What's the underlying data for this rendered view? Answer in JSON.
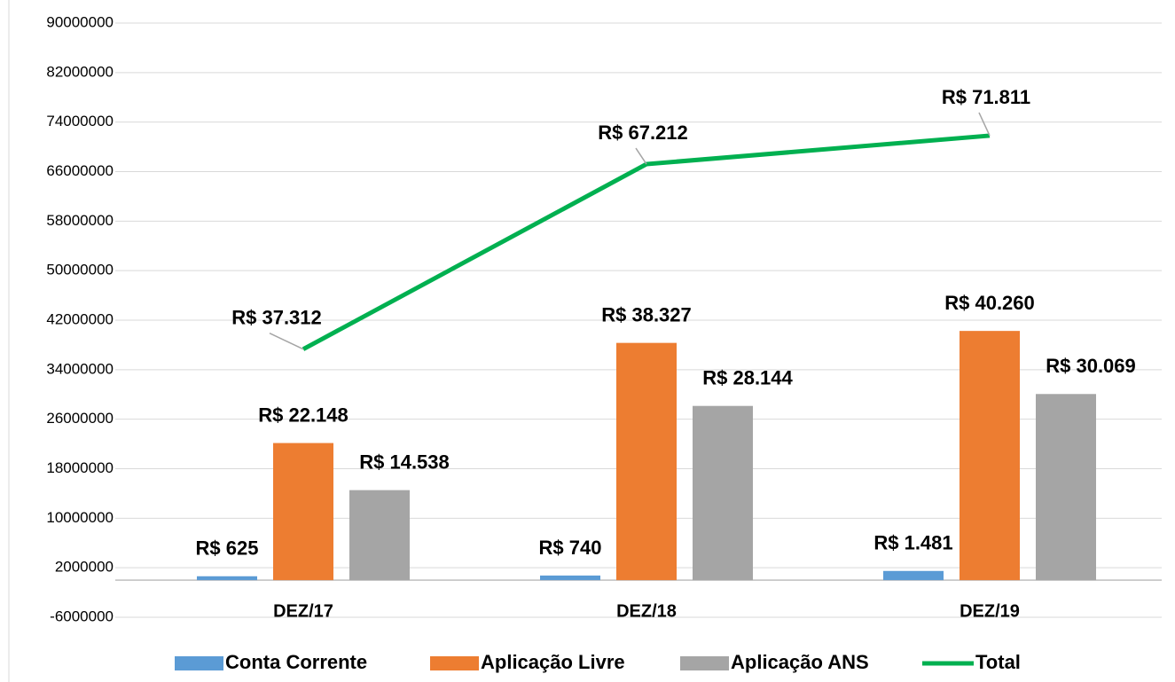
{
  "chart_data": {
    "type": "bar",
    "categories": [
      "DEZ/17",
      "DEZ/18",
      "DEZ/19"
    ],
    "ylim": [
      -6000000,
      90000000
    ],
    "yticks": [
      -6000000,
      2000000,
      10000000,
      18000000,
      26000000,
      34000000,
      42000000,
      50000000,
      58000000,
      66000000,
      74000000,
      82000000,
      90000000
    ],
    "grid": true,
    "legend": "bottom",
    "series": [
      {
        "name": "Conta Corrente",
        "color": "#5b9bd5",
        "values": [
          625000,
          740000,
          1481000
        ],
        "value_labels": [
          "R$ 625",
          "R$ 740",
          "R$ 1.481"
        ]
      },
      {
        "name": "Aplicação Livre",
        "color": "#ed7d31",
        "values": [
          22148000,
          38327000,
          40260000
        ],
        "value_labels": [
          "R$ 22.148",
          "R$ 38.327",
          "R$ 40.260"
        ]
      },
      {
        "name": "Aplicação ANS",
        "color": "#a5a5a5",
        "values": [
          14538000,
          28144000,
          30069000
        ],
        "value_labels": [
          "R$ 14.538",
          "R$ 28.144",
          "R$ 30.069"
        ]
      },
      {
        "name": "Total",
        "type": "line",
        "color": "#00b050",
        "values": [
          37312000,
          67212000,
          71811000
        ],
        "value_labels": [
          "R$ 37.312",
          "R$ 67.212",
          "R$ 71.811"
        ]
      }
    ]
  }
}
